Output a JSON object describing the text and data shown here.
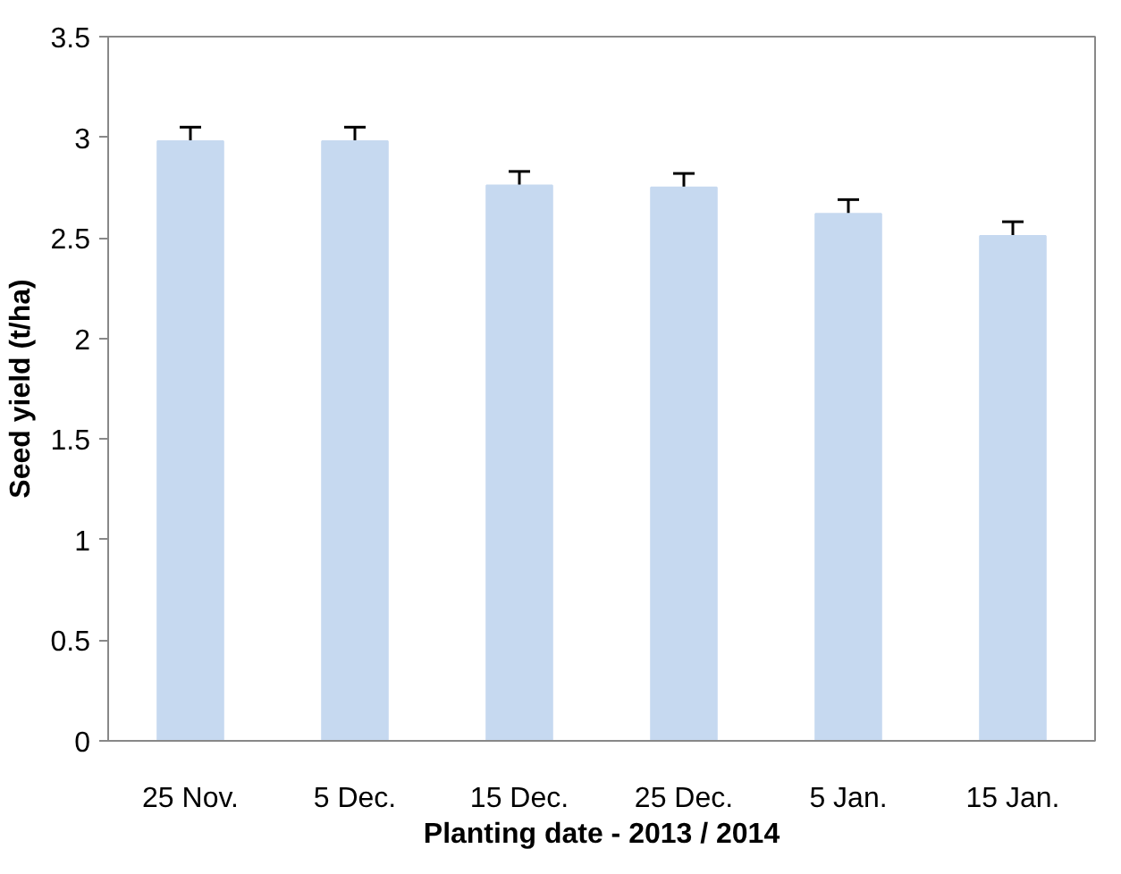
{
  "chart_data": {
    "type": "bar",
    "xlabel": "Planting date - 2013 / 2014",
    "ylabel": "Seed yield (t/ha)",
    "categories": [
      "25 Nov.",
      "5 Dec.",
      "15 Dec.",
      "25 Dec.",
      "5 Jan.",
      "15 Jan."
    ],
    "values": [
      2.98,
      2.98,
      2.76,
      2.75,
      2.62,
      2.51
    ],
    "errors": [
      0.07,
      0.07,
      0.07,
      0.07,
      0.07,
      0.07
    ],
    "color": "#c6d9f0",
    "ylim": [
      0,
      3.5
    ],
    "yticks": [
      0,
      0.5,
      1,
      1.5,
      2,
      2.5,
      3,
      3.5
    ],
    "grid": false
  }
}
